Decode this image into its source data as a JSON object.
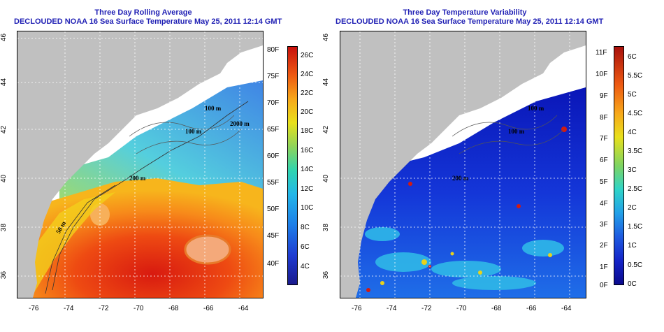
{
  "left": {
    "title_line1": "Three Day Rolling Average",
    "title_line2": "DECLOUDED NOAA 16 Sea Surface Temperature May 25, 2011 12:14 GMT",
    "contour_labels": [
      "100 m",
      "100 m",
      "2000 m",
      "200 m",
      "50 m"
    ],
    "colorbar": {
      "fahrenheit_ticks": [
        "80F",
        "75F",
        "70F",
        "65F",
        "60F",
        "55F",
        "50F",
        "45F",
        "40F"
      ],
      "celsius_ticks": [
        "26C",
        "24C",
        "22C",
        "20C",
        "18C",
        "16C",
        "14C",
        "12C",
        "10C",
        "8C",
        "6C",
        "4C"
      ]
    }
  },
  "right": {
    "title_line1": "Three Day Temperature Variability",
    "title_line2": "DECLOUDED NOAA 16 Sea Surface Temperature May 25, 2011 12:14 GMT",
    "contour_labels": [
      "100 m",
      "100 m",
      "200 m"
    ],
    "colorbar": {
      "fahrenheit_ticks": [
        "11F",
        "10F",
        "9F",
        "8F",
        "7F",
        "6F",
        "5F",
        "4F",
        "3F",
        "2F",
        "1F",
        "0F"
      ],
      "celsius_ticks": [
        "6C",
        "5.5C",
        "5C",
        "4.5C",
        "4C",
        "3.5C",
        "3C",
        "2.5C",
        "2C",
        "1.5C",
        "1C",
        "0.5C",
        "0C"
      ]
    }
  },
  "axes": {
    "lon_ticks": [
      "-76",
      "-74",
      "-72",
      "-70",
      "-68",
      "-66",
      "-64"
    ],
    "lat_ticks": [
      "46",
      "44",
      "42",
      "40",
      "38",
      "36"
    ]
  },
  "colors": {
    "title": "#1f1fb4",
    "land": "#c0c0c0",
    "cloud": "#ffffff"
  }
}
